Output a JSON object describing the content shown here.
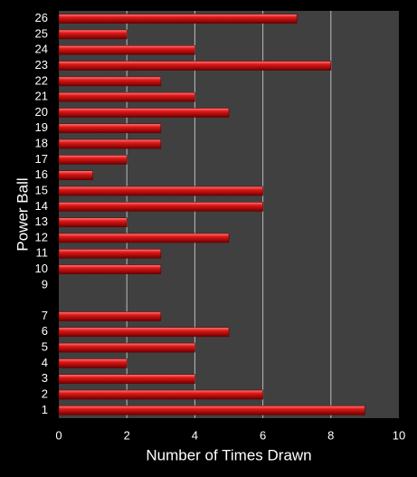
{
  "chart_data": {
    "type": "bar",
    "orientation": "horizontal",
    "xlabel": "Number of Times Drawn",
    "ylabel": "Power Ball",
    "categories": [
      "1",
      "2",
      "3",
      "4",
      "5",
      "6",
      "7",
      null,
      "9",
      "10",
      "11",
      "12",
      "13",
      "14",
      "15",
      "16",
      "17",
      "18",
      "19",
      "20",
      "21",
      "22",
      "23",
      "24",
      "25",
      "26"
    ],
    "values": [
      9,
      6,
      4,
      2,
      4,
      5,
      3,
      0,
      0,
      3,
      3,
      5,
      2,
      6,
      6,
      1,
      2,
      3,
      3,
      5,
      4,
      3,
      8,
      4,
      2,
      7
    ],
    "color": "#e01818",
    "xlim": [
      0,
      10
    ],
    "xticks": [
      0,
      2,
      4,
      6,
      8,
      10
    ],
    "grid": true
  }
}
